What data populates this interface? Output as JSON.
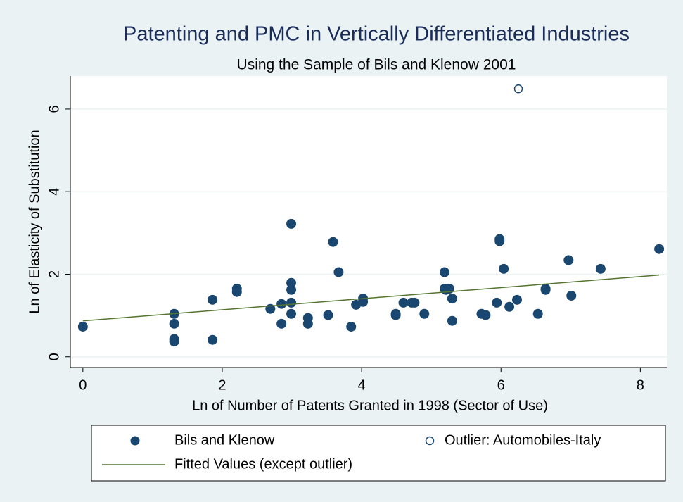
{
  "chart_data": {
    "type": "scatter",
    "title": "Patenting and PMC in Vertically Differentiated Industries",
    "subtitle": "Using the Sample of Bils and Klenow 2001",
    "x_label": "Ln of Number of Patents Granted in 1998 (Sector of Use)",
    "y_label": "Ln of Elasticity of Substitution",
    "xlim": [
      -0.18,
      8.38
    ],
    "ylim": [
      -0.26,
      6.8
    ],
    "xticks": [
      0,
      2,
      4,
      6,
      8
    ],
    "yticks": [
      0,
      2,
      4,
      6
    ],
    "grid": true,
    "series": [
      {
        "name": "Bils and Klenow",
        "color": "#1a476f",
        "marker": "filled",
        "x": [
          0,
          1.31,
          1.31,
          1.31,
          1.31,
          1.86,
          1.86,
          2.21,
          2.21,
          2.69,
          2.85,
          2.85,
          2.99,
          2.99,
          2.99,
          2.99,
          2.99,
          3.23,
          3.23,
          3.52,
          3.59,
          3.67,
          3.85,
          3.92,
          4.02,
          4.02,
          4.49,
          4.49,
          4.6,
          4.72,
          4.76,
          4.9,
          5.19,
          5.19,
          5.21,
          5.26,
          5.3,
          5.3,
          5.72,
          5.78,
          5.94,
          5.98,
          5.98,
          6.04,
          6.12,
          6.23,
          6.53,
          6.64,
          6.64,
          6.97,
          7.01,
          7.43,
          8.27
        ],
        "values": [
          0.73,
          1.04,
          0.8,
          0.43,
          0.37,
          1.38,
          0.41,
          1.65,
          1.57,
          1.16,
          1.28,
          0.8,
          3.22,
          1.79,
          1.62,
          1.31,
          1.04,
          0.94,
          0.8,
          1.01,
          2.78,
          2.05,
          0.73,
          1.26,
          1.41,
          1.33,
          1.04,
          1.01,
          1.31,
          1.31,
          1.31,
          1.04,
          1.65,
          2.05,
          1.62,
          1.65,
          1.41,
          0.87,
          1.04,
          1.01,
          1.31,
          2.85,
          2.8,
          2.13,
          1.21,
          1.38,
          1.04,
          1.65,
          1.62,
          2.34,
          1.48,
          2.13,
          2.61
        ]
      },
      {
        "name": "Outlier: Automobiles-Italy",
        "color": "#1a476f",
        "marker": "hollow",
        "x": [
          6.25
        ],
        "values": [
          6.49
        ]
      },
      {
        "name": "Fitted Values (except outlier)",
        "color": "#55752f",
        "marker": "line",
        "x": [
          0,
          8.27
        ],
        "values": [
          0.87,
          1.98
        ]
      }
    ],
    "legend_position": "bottom"
  }
}
